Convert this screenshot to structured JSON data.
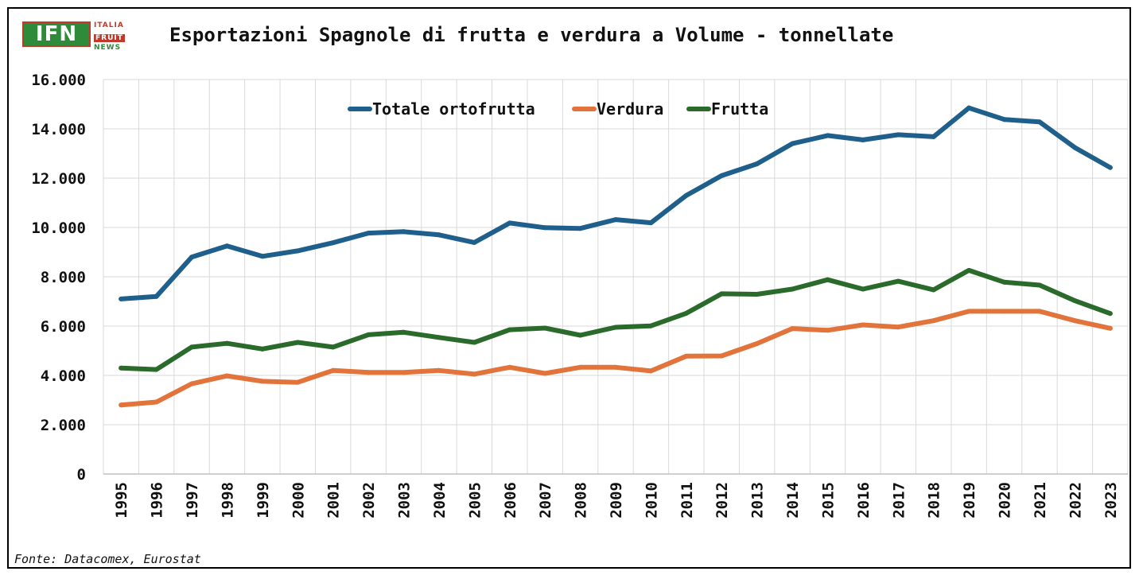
{
  "logo": {
    "mark": "IFN",
    "word_1": "ITALIA",
    "word_2": "FRUIT",
    "word_3": "NEWS"
  },
  "source": "Fonte: Datacomex, Eurostat",
  "chart_data": {
    "type": "line",
    "title": "Esportazioni Spagnole di frutta e verdura a Volume - tonnellate",
    "xlabel": "",
    "ylabel": "",
    "ylim": [
      0,
      16000
    ],
    "yticks": [
      0,
      2000,
      4000,
      6000,
      8000,
      10000,
      12000,
      14000,
      16000
    ],
    "ytick_labels": [
      "0",
      "2.000",
      "4.000",
      "6.000",
      "8.000",
      "10.000",
      "12.000",
      "14.000",
      "16.000"
    ],
    "grid": true,
    "legend_position": "top-center",
    "categories": [
      "1995",
      "1996",
      "1997",
      "1998",
      "1999",
      "2000",
      "2001",
      "2002",
      "2003",
      "2004",
      "2005",
      "2006",
      "2007",
      "2008",
      "2009",
      "2010",
      "2011",
      "2012",
      "2013",
      "2014",
      "2015",
      "2016",
      "2017",
      "2018",
      "2019",
      "2020",
      "2021",
      "2022",
      "2023"
    ],
    "series": [
      {
        "name": "Totale ortofrutta",
        "color": "#1f5f8b",
        "values": [
          7100,
          7200,
          8800,
          9250,
          8830,
          9050,
          9380,
          9770,
          9830,
          9700,
          9390,
          10180,
          9990,
          9960,
          10320,
          10190,
          11300,
          12100,
          12580,
          13400,
          13730,
          13550,
          13760,
          13680,
          14850,
          14380,
          14280,
          13240,
          12430
        ]
      },
      {
        "name": "Verdura",
        "color": "#e2733a",
        "values": [
          2800,
          2920,
          3660,
          3980,
          3760,
          3720,
          4200,
          4120,
          4120,
          4200,
          4050,
          4330,
          4080,
          4330,
          4330,
          4180,
          4780,
          4790,
          5290,
          5900,
          5830,
          6050,
          5960,
          6220,
          6600,
          6600,
          6600,
          6220,
          5910
        ]
      },
      {
        "name": "Frutta",
        "color": "#2a6a2a",
        "values": [
          4300,
          4240,
          5150,
          5300,
          5070,
          5340,
          5150,
          5650,
          5750,
          5540,
          5340,
          5850,
          5920,
          5630,
          5950,
          6010,
          6520,
          7310,
          7290,
          7500,
          7880,
          7500,
          7820,
          7470,
          8260,
          7780,
          7660,
          7030,
          6510
        ]
      }
    ]
  }
}
